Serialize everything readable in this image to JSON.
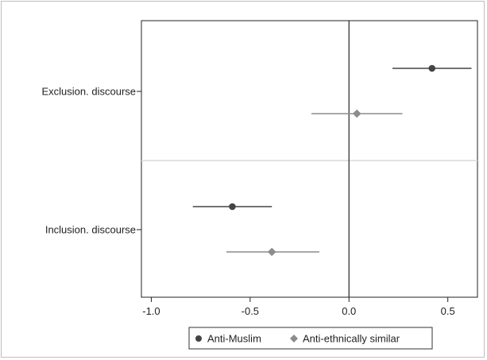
{
  "chart_data": {
    "type": "scatter",
    "subtype": "coefficient-plot",
    "title": "",
    "xlabel": "",
    "ylabel": "",
    "xlim": [
      -1.05,
      0.65
    ],
    "xticks": [
      -1.0,
      -0.5,
      0.0,
      0.5
    ],
    "xtick_labels": [
      "-1.0",
      "-0.5",
      "0.0",
      "0.5"
    ],
    "categories": [
      "Exclusion. discourse",
      "Inclusion. discourse"
    ],
    "reference_line_x": 0,
    "grid": false,
    "legend_position": "bottom",
    "series": [
      {
        "name": "Anti-Muslim",
        "marker": "circle",
        "color": "#444444",
        "points": [
          {
            "category": "Exclusion. discourse",
            "estimate": 0.42,
            "ci_low": 0.22,
            "ci_high": 0.62
          },
          {
            "category": "Inclusion. discourse",
            "estimate": -0.59,
            "ci_low": -0.79,
            "ci_high": -0.39
          }
        ]
      },
      {
        "name": "Anti-ethnically similar",
        "marker": "diamond",
        "color": "#8c8c8c",
        "points": [
          {
            "category": "Exclusion. discourse",
            "estimate": 0.04,
            "ci_low": -0.19,
            "ci_high": 0.27
          },
          {
            "category": "Inclusion. discourse",
            "estimate": -0.39,
            "ci_low": -0.62,
            "ci_high": -0.15
          }
        ]
      }
    ]
  }
}
